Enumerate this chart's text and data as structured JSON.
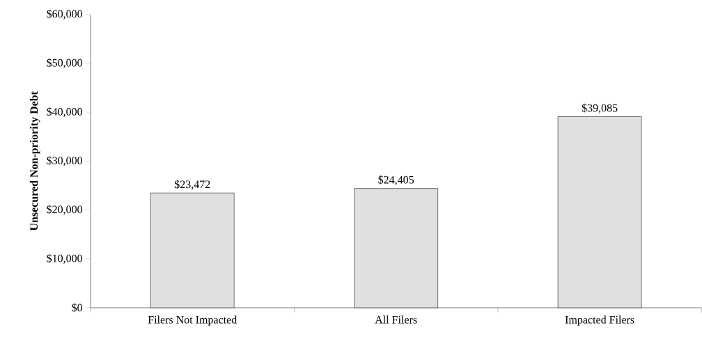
{
  "chart_data": {
    "type": "bar",
    "ylabel": "Unsecured Non-priority Debt",
    "categories": [
      "Filers Not Impacted",
      "All Filers",
      "Impacted Filers"
    ],
    "values": [
      23472,
      24405,
      39085
    ],
    "value_labels": [
      "$23,472",
      "$24,405",
      "$39,085"
    ],
    "color": "#e0e0e0",
    "ylim": [
      0,
      60000
    ],
    "yticks": [
      {
        "value": 0,
        "label": "$0"
      },
      {
        "value": 10000,
        "label": "$10,000"
      },
      {
        "value": 20000,
        "label": "$20,000"
      },
      {
        "value": 30000,
        "label": "$30,000"
      },
      {
        "value": 40000,
        "label": "$40,000"
      },
      {
        "value": 50000,
        "label": "$50,000"
      },
      {
        "value": 60000,
        "label": "$60,000"
      }
    ],
    "grid": false
  }
}
